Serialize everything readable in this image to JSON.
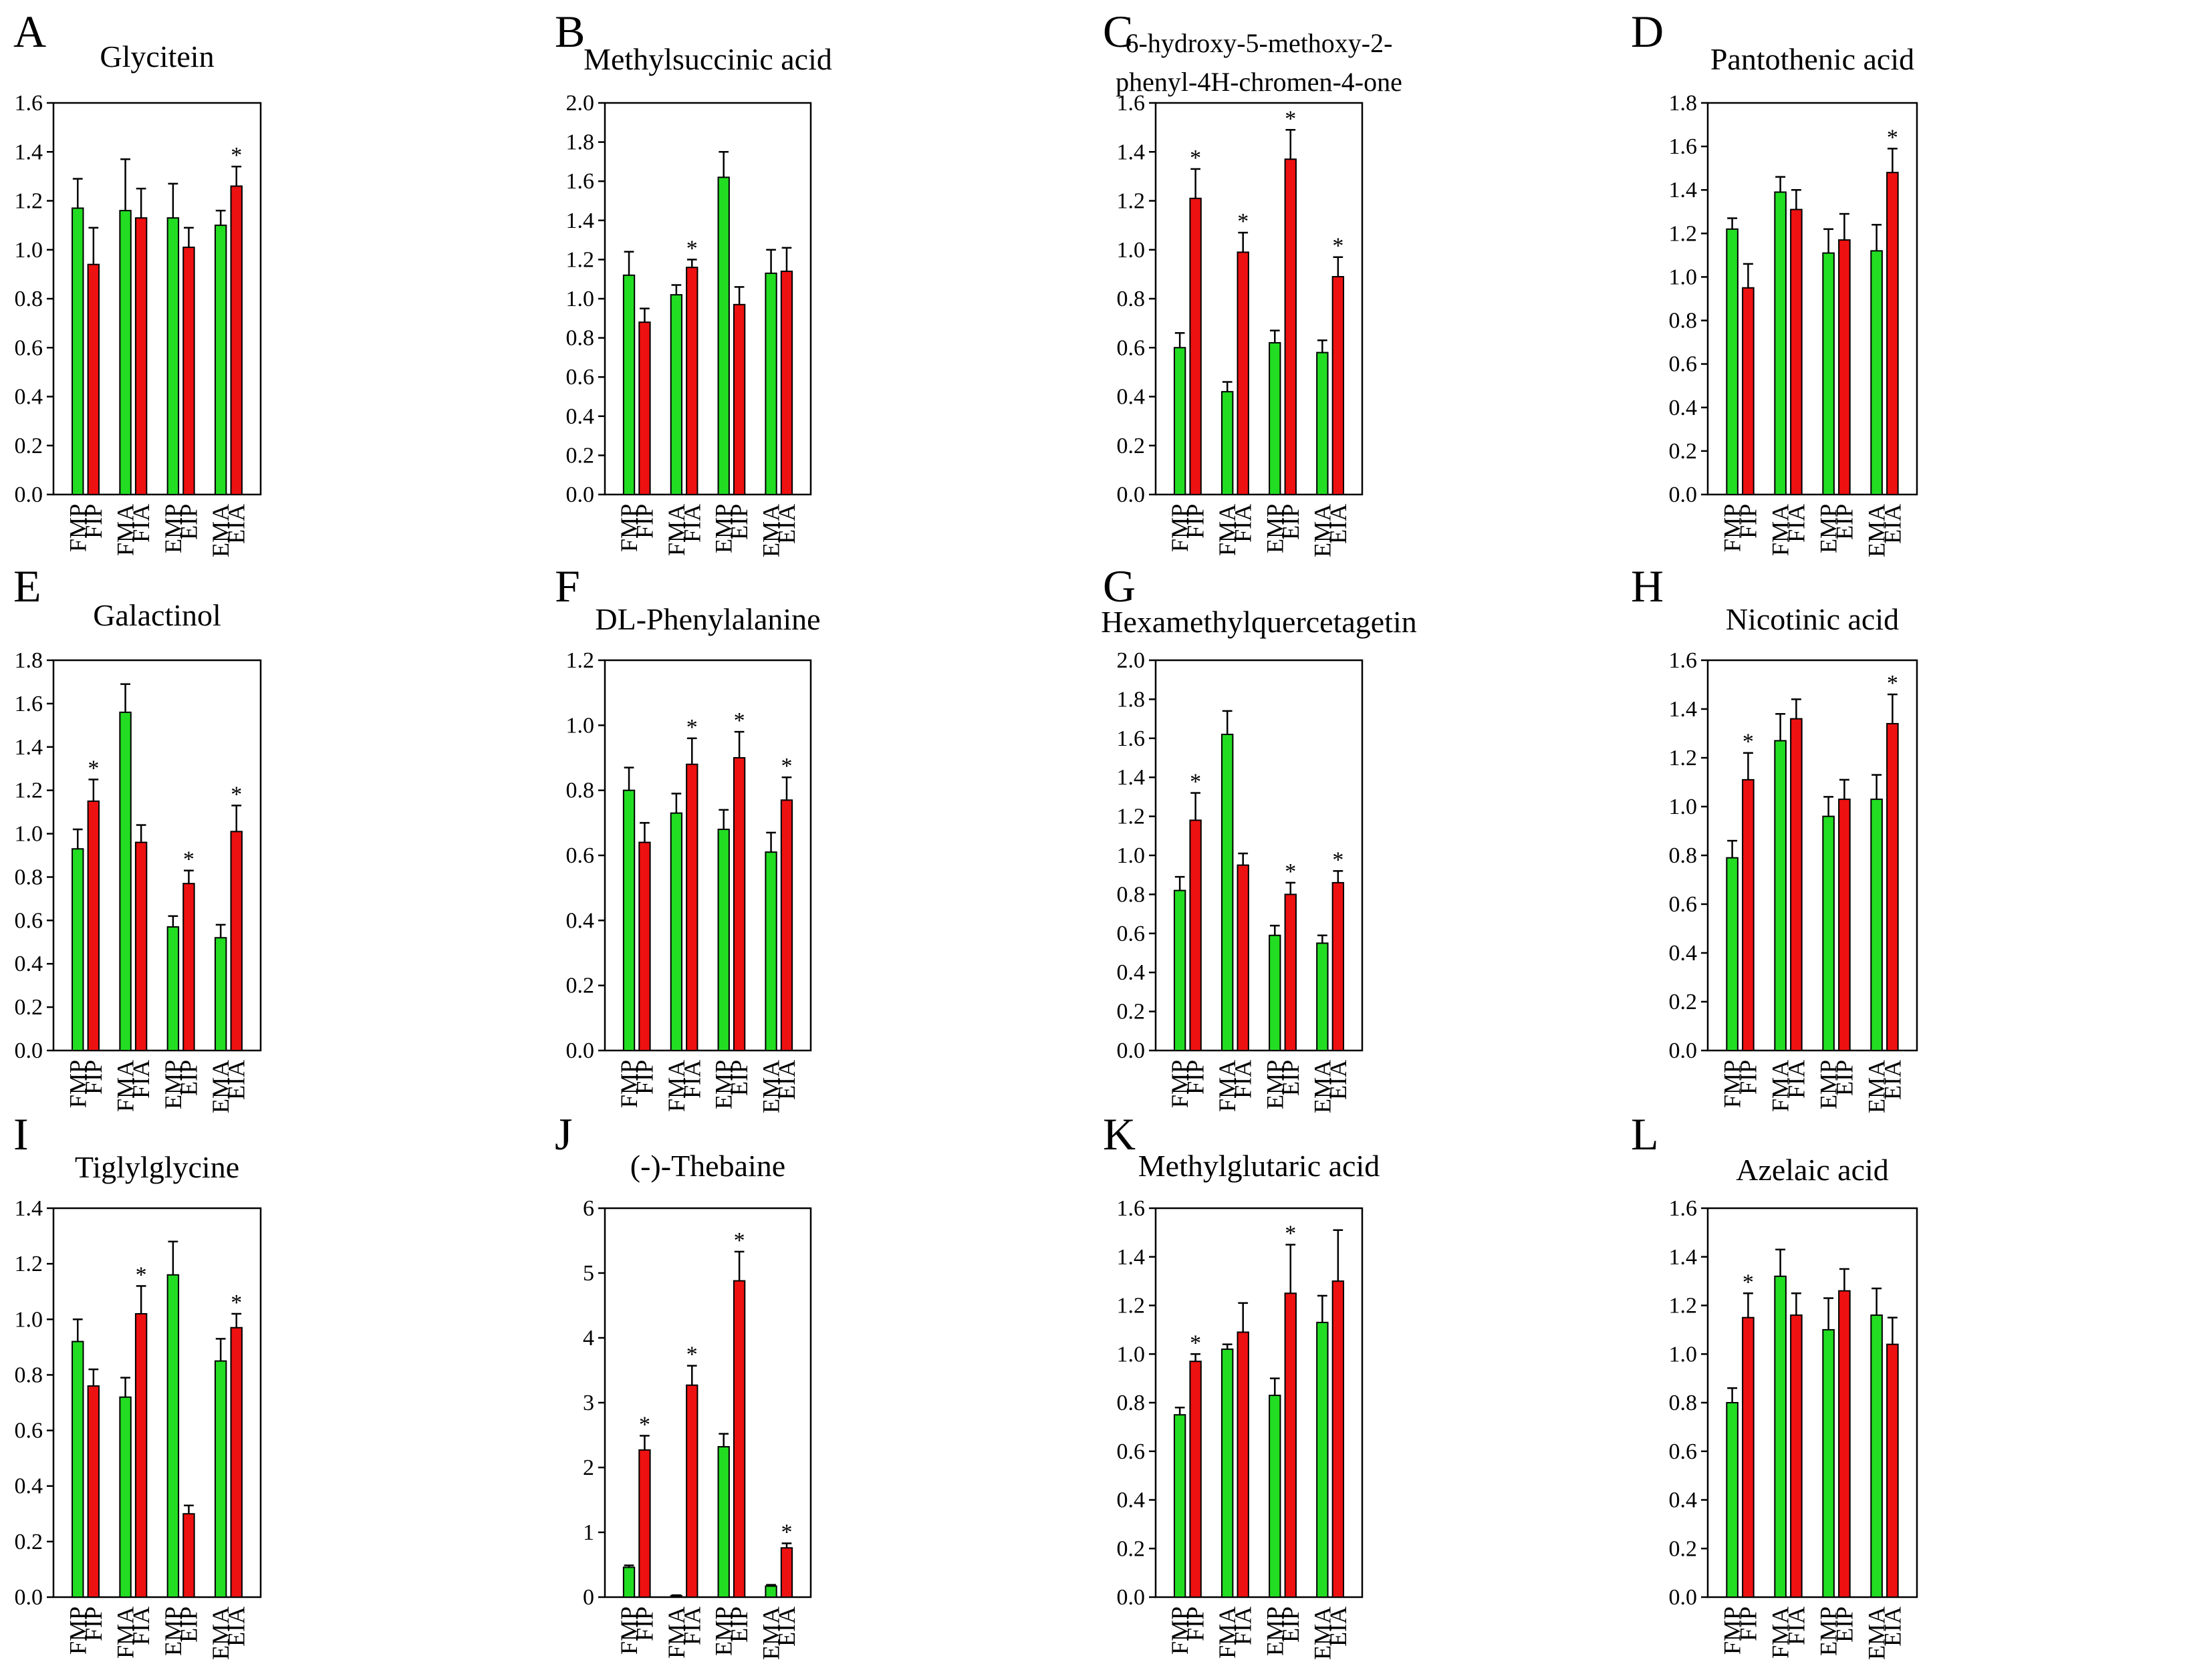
{
  "figure": {
    "colors": {
      "first_bar": "#22dd22",
      "second_bar": "#ee1111",
      "axis": "#000000"
    },
    "significance_marker": "*"
  },
  "chart_data": [
    {
      "panel": "A",
      "type": "bar",
      "title": [
        "Glycitein"
      ],
      "ylim": [
        0,
        1.6
      ],
      "yticks": [
        "0.0",
        "0.2",
        "0.4",
        "0.6",
        "0.8",
        "1.0",
        "1.2",
        "1.4",
        "1.6"
      ],
      "categories": [
        "FMP",
        "FIP",
        "FMA",
        "FIA",
        "EMP",
        "EIP",
        "EMA",
        "EIA"
      ],
      "values": [
        1.17,
        0.94,
        1.16,
        1.13,
        1.13,
        1.01,
        1.1,
        1.26
      ],
      "errors": [
        0.12,
        0.15,
        0.21,
        0.12,
        0.14,
        0.08,
        0.06,
        0.08
      ],
      "significant": [
        false,
        false,
        false,
        false,
        false,
        false,
        false,
        true
      ]
    },
    {
      "panel": "B",
      "type": "bar",
      "title": [
        "Methylsuccinic acid"
      ],
      "ylim": [
        0,
        2.0
      ],
      "yticks": [
        "0.0",
        "0.2",
        "0.4",
        "0.6",
        "0.8",
        "1.0",
        "1.2",
        "1.4",
        "1.6",
        "1.8",
        "2.0"
      ],
      "categories": [
        "FMP",
        "FIP",
        "FMA",
        "FIA",
        "EMP",
        "EIP",
        "EMA",
        "EIA"
      ],
      "values": [
        1.12,
        0.88,
        1.02,
        1.16,
        1.62,
        0.97,
        1.13,
        1.14
      ],
      "errors": [
        0.12,
        0.07,
        0.05,
        0.04,
        0.13,
        0.09,
        0.12,
        0.12
      ],
      "significant": [
        false,
        false,
        false,
        true,
        false,
        false,
        false,
        false
      ]
    },
    {
      "panel": "C",
      "type": "bar",
      "title": [
        "6-hydroxy-5-methoxy-2-",
        "phenyl-4H-chromen-4-one"
      ],
      "ylim": [
        0,
        1.6
      ],
      "yticks": [
        "0.0",
        "0.2",
        "0.4",
        "0.6",
        "0.8",
        "1.0",
        "1.2",
        "1.4",
        "1.6"
      ],
      "categories": [
        "FMP",
        "FIP",
        "FMA",
        "FIA",
        "EMP",
        "EIP",
        "EMA",
        "EIA"
      ],
      "values": [
        0.6,
        1.21,
        0.42,
        0.99,
        0.62,
        1.37,
        0.58,
        0.89
      ],
      "errors": [
        0.06,
        0.12,
        0.04,
        0.08,
        0.05,
        0.12,
        0.05,
        0.08
      ],
      "significant": [
        false,
        true,
        false,
        true,
        false,
        true,
        false,
        true
      ]
    },
    {
      "panel": "D",
      "type": "bar",
      "title": [
        "Pantothenic acid"
      ],
      "ylim": [
        0,
        1.8
      ],
      "yticks": [
        "0.0",
        "0.2",
        "0.4",
        "0.6",
        "0.8",
        "1.0",
        "1.2",
        "1.4",
        "1.6",
        "1.8"
      ],
      "categories": [
        "FMP",
        "FIP",
        "FMA",
        "FIA",
        "EMP",
        "EIP",
        "EMA",
        "EIA"
      ],
      "values": [
        1.22,
        0.95,
        1.39,
        1.31,
        1.11,
        1.17,
        1.12,
        1.48
      ],
      "errors": [
        0.05,
        0.11,
        0.07,
        0.09,
        0.11,
        0.12,
        0.12,
        0.11
      ],
      "significant": [
        false,
        false,
        false,
        false,
        false,
        false,
        false,
        true
      ]
    },
    {
      "panel": "E",
      "type": "bar",
      "title": [
        "Galactinol"
      ],
      "ylim": [
        0,
        1.8
      ],
      "yticks": [
        "0.0",
        "0.2",
        "0.4",
        "0.6",
        "0.8",
        "1.0",
        "1.2",
        "1.4",
        "1.6",
        "1.8"
      ],
      "categories": [
        "FMP",
        "FIP",
        "FMA",
        "FIA",
        "EMP",
        "EIP",
        "EMA",
        "EIA"
      ],
      "values": [
        0.93,
        1.15,
        1.56,
        0.96,
        0.57,
        0.77,
        0.52,
        1.01
      ],
      "errors": [
        0.09,
        0.1,
        0.13,
        0.08,
        0.05,
        0.06,
        0.06,
        0.12
      ],
      "significant": [
        false,
        true,
        false,
        false,
        false,
        true,
        false,
        true
      ]
    },
    {
      "panel": "F",
      "type": "bar",
      "title": [
        "DL-Phenylalanine"
      ],
      "ylim": [
        0,
        1.2
      ],
      "yticks": [
        "0.0",
        "0.2",
        "0.4",
        "0.6",
        "0.8",
        "1.0",
        "1.2"
      ],
      "categories": [
        "FMP",
        "FIP",
        "FMA",
        "FIA",
        "EMP",
        "EIP",
        "EMA",
        "EIA"
      ],
      "values": [
        0.8,
        0.64,
        0.73,
        0.88,
        0.68,
        0.9,
        0.61,
        0.77
      ],
      "errors": [
        0.07,
        0.06,
        0.06,
        0.08,
        0.06,
        0.08,
        0.06,
        0.07
      ],
      "significant": [
        false,
        false,
        false,
        true,
        false,
        true,
        false,
        true
      ]
    },
    {
      "panel": "G",
      "type": "bar",
      "title": [
        "Hexamethylquercetagetin"
      ],
      "ylim": [
        0,
        2.0
      ],
      "yticks": [
        "0.0",
        "0.2",
        "0.4",
        "0.6",
        "0.8",
        "1.0",
        "1.2",
        "1.4",
        "1.6",
        "1.8",
        "2.0"
      ],
      "categories": [
        "FMP",
        "FIP",
        "FMA",
        "FIA",
        "EMP",
        "EIP",
        "EMA",
        "EIA"
      ],
      "values": [
        0.82,
        1.18,
        1.62,
        0.95,
        0.59,
        0.8,
        0.55,
        0.86
      ],
      "errors": [
        0.07,
        0.14,
        0.12,
        0.06,
        0.05,
        0.06,
        0.04,
        0.06
      ],
      "significant": [
        false,
        true,
        false,
        false,
        false,
        true,
        false,
        true
      ]
    },
    {
      "panel": "H",
      "type": "bar",
      "title": [
        "Nicotinic acid"
      ],
      "ylim": [
        0,
        1.6
      ],
      "yticks": [
        "0.0",
        "0.2",
        "0.4",
        "0.6",
        "0.8",
        "1.0",
        "1.2",
        "1.4",
        "1.6"
      ],
      "categories": [
        "FMP",
        "FIP",
        "FMA",
        "FIA",
        "EMP",
        "EIP",
        "EMA",
        "EIA"
      ],
      "values": [
        0.79,
        1.11,
        1.27,
        1.36,
        0.96,
        1.03,
        1.03,
        1.34
      ],
      "errors": [
        0.07,
        0.11,
        0.11,
        0.08,
        0.08,
        0.08,
        0.1,
        0.12
      ],
      "significant": [
        false,
        true,
        false,
        false,
        false,
        false,
        false,
        true
      ]
    },
    {
      "panel": "I",
      "type": "bar",
      "title": [
        "Tiglylglycine"
      ],
      "ylim": [
        0,
        1.4
      ],
      "yticks": [
        "0.0",
        "0.2",
        "0.4",
        "0.6",
        "0.8",
        "1.0",
        "1.2",
        "1.4"
      ],
      "categories": [
        "FMP",
        "FIP",
        "FMA",
        "FIA",
        "EMP",
        "EIP",
        "EMA",
        "EIA"
      ],
      "values": [
        0.92,
        0.76,
        0.72,
        1.02,
        1.16,
        0.3,
        0.85,
        0.97
      ],
      "errors": [
        0.08,
        0.06,
        0.07,
        0.1,
        0.12,
        0.03,
        0.08,
        0.05
      ],
      "significant": [
        false,
        false,
        false,
        true,
        false,
        false,
        false,
        true
      ]
    },
    {
      "panel": "J",
      "type": "bar",
      "title": [
        "(-)-Thebaine"
      ],
      "ylim": [
        0,
        6
      ],
      "yticks": [
        "0",
        "1",
        "2",
        "3",
        "4",
        "5",
        "6"
      ],
      "categories": [
        "FMP",
        "FIP",
        "FMA",
        "FIA",
        "EMP",
        "EIP",
        "EMA",
        "EIA"
      ],
      "values": [
        0.46,
        2.27,
        0.02,
        3.27,
        2.32,
        4.88,
        0.17,
        0.76
      ],
      "errors": [
        0.03,
        0.22,
        0.01,
        0.3,
        0.2,
        0.45,
        0.02,
        0.07
      ],
      "significant": [
        false,
        true,
        false,
        true,
        false,
        true,
        false,
        true
      ]
    },
    {
      "panel": "K",
      "type": "bar",
      "title": [
        "Methylglutaric acid"
      ],
      "ylim": [
        0,
        1.6
      ],
      "yticks": [
        "0.0",
        "0.2",
        "0.4",
        "0.6",
        "0.8",
        "1.0",
        "1.2",
        "1.4",
        "1.6"
      ],
      "categories": [
        "FMP",
        "FIP",
        "FMA",
        "FIA",
        "EMP",
        "EIP",
        "EMA",
        "EIA"
      ],
      "values": [
        0.75,
        0.97,
        1.02,
        1.09,
        0.83,
        1.25,
        1.13,
        1.3
      ],
      "errors": [
        0.03,
        0.03,
        0.02,
        0.12,
        0.07,
        0.2,
        0.11,
        0.21
      ],
      "significant": [
        false,
        true,
        false,
        false,
        false,
        true,
        false,
        false
      ]
    },
    {
      "panel": "L",
      "type": "bar",
      "title": [
        "Azelaic acid"
      ],
      "ylim": [
        0,
        1.6
      ],
      "yticks": [
        "0.0",
        "0.2",
        "0.4",
        "0.6",
        "0.8",
        "1.0",
        "1.2",
        "1.4",
        "1.6"
      ],
      "categories": [
        "FMP",
        "FIP",
        "FMA",
        "FIA",
        "EMP",
        "EIP",
        "EMA",
        "EIA"
      ],
      "values": [
        0.8,
        1.15,
        1.32,
        1.16,
        1.1,
        1.26,
        1.16,
        1.04
      ],
      "errors": [
        0.06,
        0.1,
        0.11,
        0.09,
        0.13,
        0.09,
        0.11,
        0.11
      ],
      "significant": [
        false,
        true,
        false,
        false,
        false,
        false,
        false,
        false
      ]
    }
  ]
}
